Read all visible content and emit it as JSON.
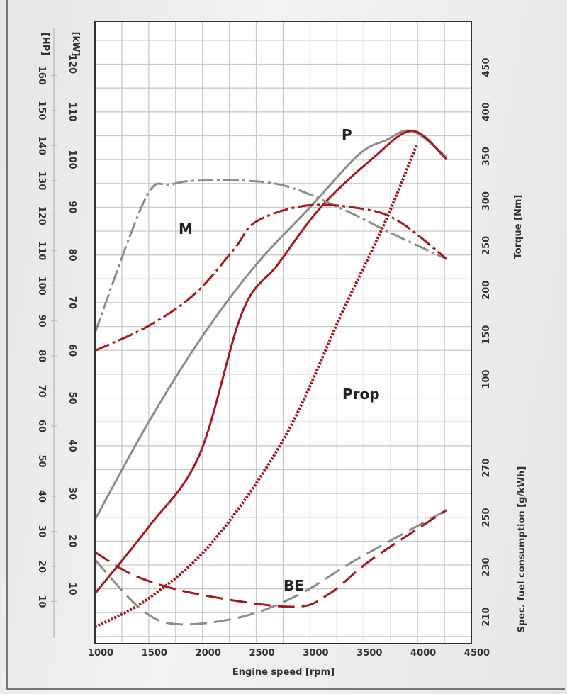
{
  "chart_data": {
    "type": "line",
    "xlabel": "Engine speed [rpm]",
    "x_ticks": [
      1000,
      1500,
      2000,
      2500,
      3000,
      3500,
      4000,
      4500
    ],
    "xlim": [
      1000,
      4500
    ],
    "grid": true,
    "axes": {
      "hp": {
        "label": "[HP]",
        "ticks": [
          10,
          20,
          30,
          40,
          50,
          60,
          70,
          80,
          90,
          100,
          110,
          120,
          130,
          140,
          150,
          160
        ]
      },
      "kw": {
        "label": "[kW]",
        "ticks": [
          10,
          20,
          30,
          40,
          50,
          60,
          70,
          80,
          90,
          100,
          110,
          120
        ],
        "ylim": [
          -1.5,
          129
        ]
      },
      "torque": {
        "label": "Torque [Nm]",
        "ticks": [
          100,
          150,
          200,
          250,
          300,
          350,
          400,
          450
        ]
      },
      "fuel": {
        "label": "Spec. fuel consumption [g/kWh]",
        "ticks": [
          210,
          230,
          250,
          270
        ]
      }
    },
    "colors": {
      "gray": "#8c8c8c",
      "red": "#a8191c"
    },
    "annotations": {
      "power": "P",
      "torque": "M",
      "prop": "Prop",
      "fuel": "BE"
    },
    "series": [
      {
        "axis": "kw",
        "color": "gray",
        "style": "solid",
        "x": [
          1000,
          1500,
          2000,
          2500,
          3000,
          3450,
          3700,
          3950,
          4270
        ],
        "y": [
          24.5,
          45,
          63,
          78,
          90,
          101,
          104,
          106,
          100.5
        ]
      },
      {
        "axis": "kw",
        "color": "red",
        "style": "solid",
        "x": [
          1000,
          1500,
          1970,
          2370,
          2700,
          3100,
          3570,
          3950,
          4270
        ],
        "y": [
          9,
          23,
          38,
          68,
          78,
          90,
          100,
          106,
          100
        ]
      },
      {
        "axis": "torque",
        "color": "gray",
        "style": "dashdot",
        "x": [
          1000,
          1470,
          1700,
          2000,
          2700,
          3300,
          3770,
          4270
        ],
        "y": [
          152,
          303,
          318,
          323,
          319,
          291,
          263,
          235
        ]
      },
      {
        "axis": "torque",
        "color": "red",
        "style": "dashdot",
        "x": [
          1000,
          1500,
          1930,
          2300,
          2500,
          2970,
          3500,
          3830,
          4270
        ],
        "y": [
          132,
          160,
          196,
          247,
          277,
          295,
          291,
          277,
          235
        ]
      },
      {
        "axis": "kw",
        "color": "red",
        "style": "dotted",
        "x": [
          1000,
          1500,
          2100,
          2770,
          3300,
          3700,
          3990
        ],
        "y": [
          2,
          8,
          20,
          42,
          68,
          87,
          103
        ]
      },
      {
        "axis": "fuel",
        "color": "gray",
        "style": "dashed",
        "x": [
          1000,
          1430,
          1770,
          2370,
          2900,
          3430,
          4270
        ],
        "y": [
          233,
          213,
          207,
          210,
          219,
          233,
          253
        ]
      },
      {
        "axis": "fuel",
        "color": "red",
        "style": "dashed",
        "x": [
          1000,
          1400,
          1970,
          2830,
          3170,
          3570,
          4270
        ],
        "y": [
          236,
          226,
          219,
          214,
          219,
          233,
          253
        ]
      }
    ]
  }
}
